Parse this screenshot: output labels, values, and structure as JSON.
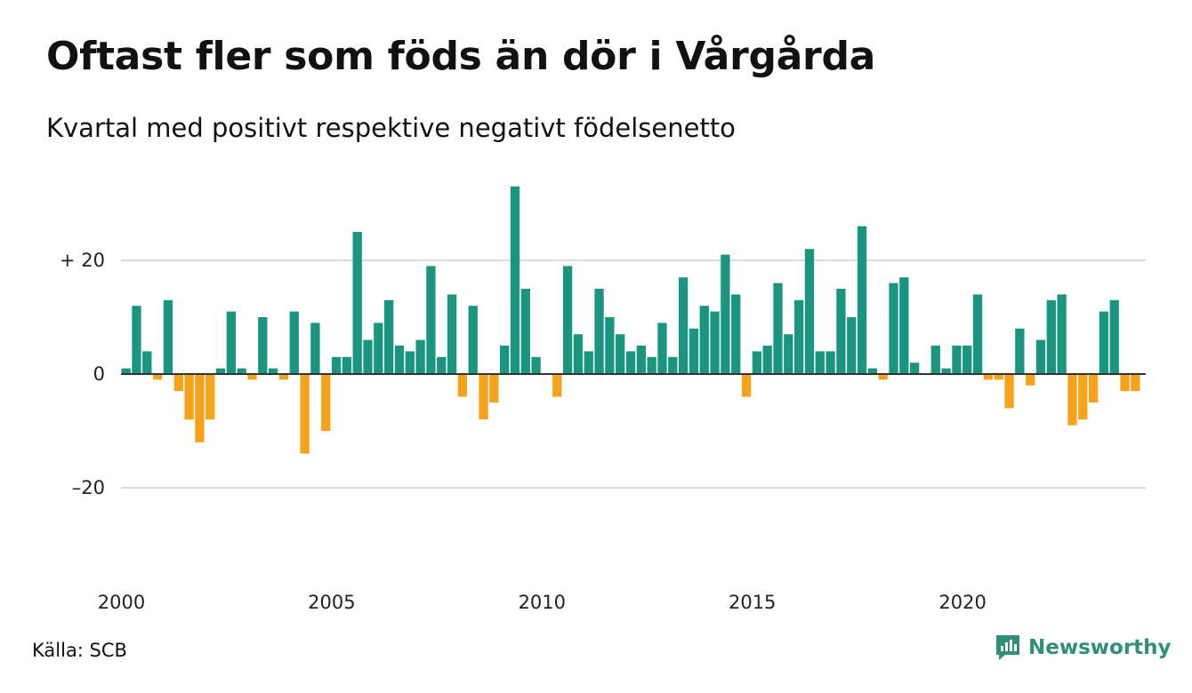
{
  "title": "Oftast fler som föds än dör i Vårgårda",
  "subtitle": "Kvartal med positivt respektive negativt födelsenetto",
  "source": "Källa: SCB",
  "brand": "Newsworthy",
  "colors": {
    "positive": "#1a9580",
    "negative": "#f7a21b",
    "grid": "#dddddd",
    "axis": "#333333",
    "brand": "#2f8f79"
  },
  "chart_data": {
    "type": "bar",
    "title": "Oftast fler som föds än dör i Vårgårda",
    "subtitle": "Kvartal med positivt respektive negativt födelsenetto",
    "xlabel": "",
    "ylabel": "",
    "ylim": [
      -35,
      35
    ],
    "y_ticks": [
      {
        "value": 20,
        "label": "+ 20"
      },
      {
        "value": 0,
        "label": "0"
      },
      {
        "value": -20,
        "label": "–20"
      }
    ],
    "x_ticks": [
      "2000",
      "2005",
      "2010",
      "2015",
      "2020"
    ],
    "grid": true,
    "start_year": 2000,
    "periods_per_year": 4,
    "values": [
      1,
      12,
      4,
      -1,
      13,
      -3,
      -8,
      -12,
      -8,
      1,
      11,
      1,
      -1,
      10,
      1,
      -1,
      11,
      -14,
      9,
      -10,
      3,
      3,
      25,
      6,
      9,
      13,
      5,
      4,
      6,
      19,
      3,
      14,
      -4,
      12,
      -8,
      -5,
      5,
      33,
      15,
      3,
      0,
      -4,
      19,
      7,
      4,
      15,
      10,
      7,
      4,
      5,
      3,
      9,
      3,
      17,
      8,
      12,
      11,
      21,
      14,
      -4,
      4,
      5,
      16,
      7,
      13,
      22,
      4,
      4,
      15,
      10,
      26,
      1,
      -1,
      16,
      17,
      2,
      0,
      5,
      1,
      5,
      5,
      14,
      -1,
      -1,
      -6,
      8,
      -2,
      6,
      13,
      14,
      -9,
      -8,
      -5,
      11,
      13,
      -3,
      -3
    ]
  }
}
